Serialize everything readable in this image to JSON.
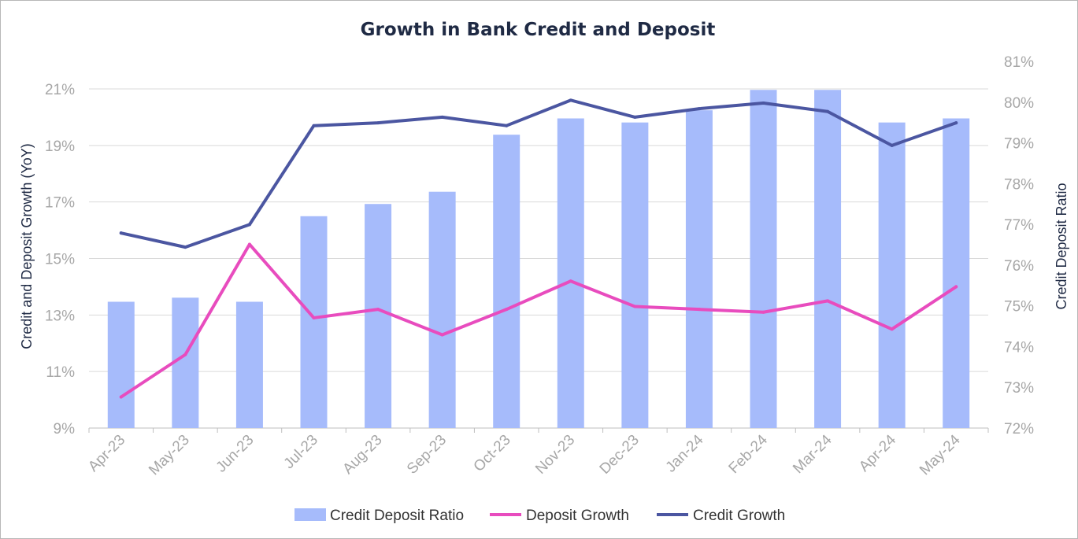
{
  "chart_data": {
    "type": "bar",
    "title": "Growth in Bank Credit and Deposit",
    "categories": [
      "Apr-23",
      "May-23",
      "Jun-23",
      "Jul-23",
      "Aug-23",
      "Sep-23",
      "Oct-23",
      "Nov-23",
      "Dec-23",
      "Jan-24",
      "Feb-24",
      "Mar-24",
      "Apr-24",
      "May-24"
    ],
    "series": [
      {
        "name": "Credit Deposit Ratio",
        "type": "bar",
        "axis": "right",
        "values": [
          75.1,
          75.2,
          75.1,
          77.2,
          77.5,
          77.8,
          79.2,
          79.6,
          79.5,
          79.8,
          80.3,
          80.3,
          79.5,
          79.6
        ]
      },
      {
        "name": "Deposit Growth",
        "type": "line",
        "axis": "left",
        "values": [
          10.1,
          11.6,
          15.5,
          12.9,
          13.2,
          12.3,
          13.2,
          14.2,
          13.3,
          13.2,
          13.1,
          13.5,
          12.5,
          14.0
        ]
      },
      {
        "name": "Credit Growth",
        "type": "line",
        "axis": "left",
        "values": [
          15.9,
          15.4,
          16.2,
          19.7,
          19.8,
          20.0,
          19.7,
          20.6,
          20.0,
          20.3,
          20.5,
          20.2,
          19.0,
          19.8
        ]
      }
    ],
    "y_left": {
      "label": "Credit and Deposit Growth (YoY)",
      "min": 9,
      "max": 21,
      "ticks": [
        "9%",
        "11%",
        "13%",
        "15%",
        "17%",
        "19%",
        "21%"
      ]
    },
    "y_right": {
      "label": "Credit Deposit Ratio",
      "min": 72,
      "max": 81,
      "ticks": [
        "72%",
        "73%",
        "74%",
        "75%",
        "76%",
        "77%",
        "78%",
        "79%",
        "80%",
        "81%"
      ]
    },
    "grid": true,
    "legend_position": "bottom",
    "colors": {
      "bar": "#a6bbfb",
      "deposit": "#e84cbe",
      "credit": "#4b56a1",
      "grid": "#d9d9d9"
    }
  }
}
